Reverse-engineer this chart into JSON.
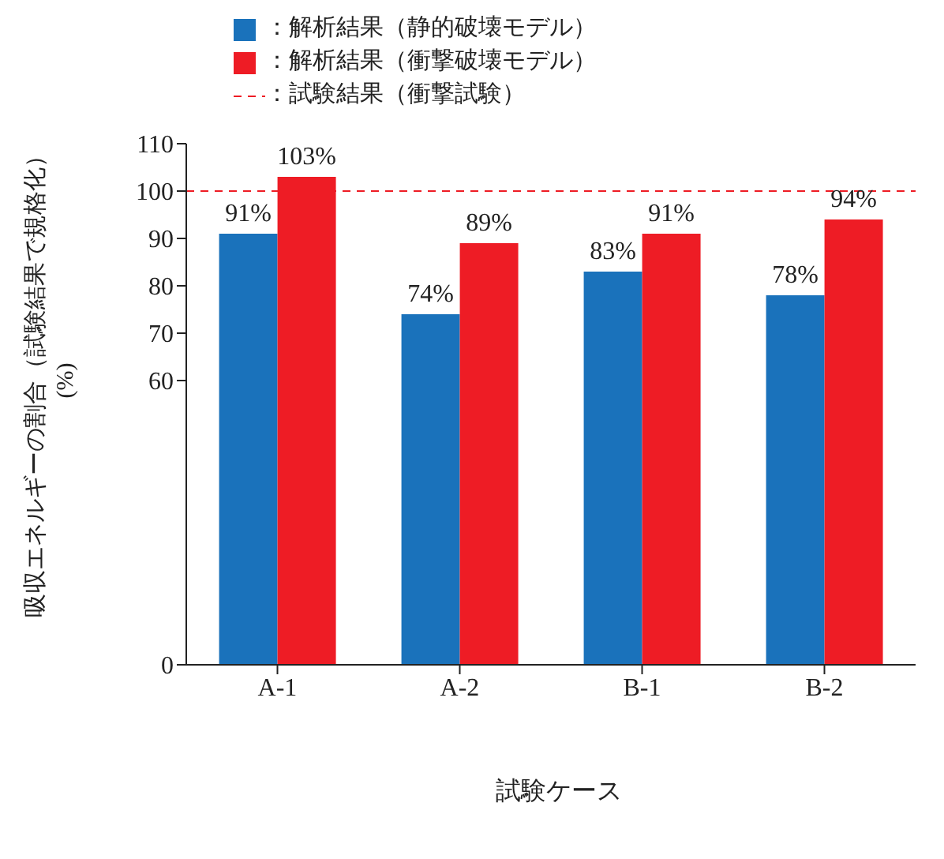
{
  "chart_data": {
    "type": "bar",
    "categories": [
      "A-1",
      "A-2",
      "B-1",
      "B-2"
    ],
    "series": [
      {
        "name": "：解析結果（静的破壊モデル）",
        "color": "#1a72bb",
        "values": [
          91,
          74,
          83,
          78
        ],
        "value_labels": [
          "91%",
          "74%",
          "83%",
          "78%"
        ]
      },
      {
        "name": "：解析結果（衝撃破壊モデル）",
        "color": "#ee1c25",
        "values": [
          103,
          89,
          91,
          94
        ],
        "value_labels": [
          "103%",
          "89%",
          "91%",
          "94%"
        ]
      }
    ],
    "xlabel": "試験ケース",
    "ylabel": "吸収エネルギーの割合（試験結果で規格化）\n(%)",
    "ylim": [
      0,
      110
    ],
    "yticks": [
      0,
      60,
      70,
      80,
      90,
      100,
      110
    ],
    "ref_lines": [
      {
        "axis": "y",
        "value": 100,
        "label": "：試験結果（衝撃試験）",
        "color": "#ee1c25",
        "line_style": "dashed"
      }
    ],
    "legend": "top left",
    "grid": false
  }
}
